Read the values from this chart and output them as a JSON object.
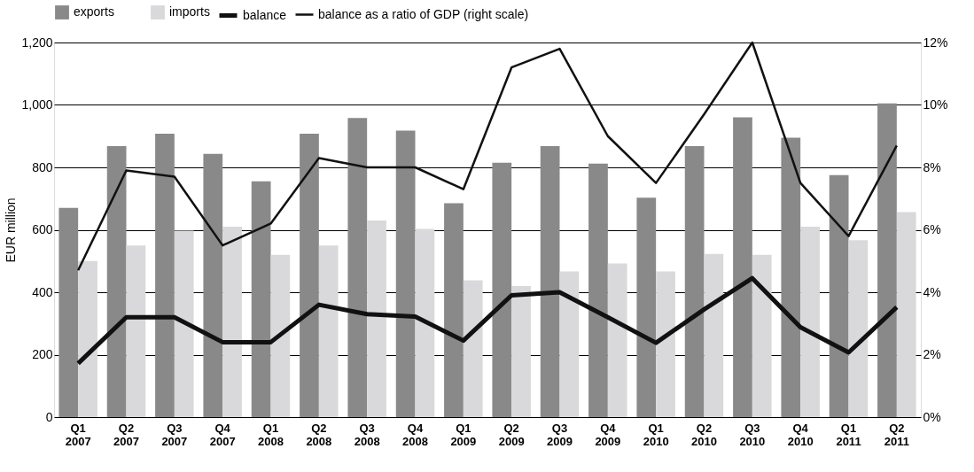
{
  "chart_data": {
    "type": "bar",
    "ylabel": "EUR million",
    "categories": [
      "Q1 2007",
      "Q2 2007",
      "Q3 2007",
      "Q4 2007",
      "Q1 2008",
      "Q2 2008",
      "Q3 2008",
      "Q4 2008",
      "Q1 2009",
      "Q2 2009",
      "Q3 2009",
      "Q4 2009",
      "Q1 2010",
      "Q2 2010",
      "Q3 2010",
      "Q4 2010",
      "Q1 2011",
      "Q2 2011"
    ],
    "series": [
      {
        "name": "exports",
        "color": "#898989",
        "values": [
          670,
          868,
          908,
          843,
          755,
          908,
          958,
          918,
          685,
          815,
          868,
          812,
          703,
          868,
          960,
          895,
          775,
          1005
        ]
      },
      {
        "name": "imports",
        "color": "#d9d9db",
        "values": [
          500,
          550,
          597,
          610,
          520,
          550,
          630,
          603,
          438,
          420,
          467,
          492,
          467,
          523,
          520,
          610,
          567,
          657
        ]
      },
      {
        "name": "balance",
        "type": "line",
        "color": "#111111",
        "values": [
          172,
          320,
          320,
          240,
          240,
          360,
          330,
          322,
          245,
          390,
          400,
          320,
          238,
          345,
          445,
          288,
          207,
          352
        ]
      },
      {
        "name": "balance as a ratio of GDP (right scale)",
        "type": "line",
        "axis": "y2",
        "color": "#111111",
        "values": [
          4.7,
          7.9,
          7.7,
          5.5,
          6.2,
          8.3,
          8.0,
          8.0,
          7.3,
          11.2,
          11.8,
          9.0,
          7.5,
          9.7,
          12.0,
          7.5,
          5.8,
          8.7
        ]
      }
    ],
    "ylim": [
      0,
      1200
    ],
    "yticks": [
      {
        "value": 0,
        "label": "0"
      },
      {
        "value": 200,
        "label": "200"
      },
      {
        "value": 400,
        "label": "400"
      },
      {
        "value": 600,
        "label": "600"
      },
      {
        "value": 800,
        "label": "800"
      },
      {
        "value": 1000,
        "label": "1,000"
      },
      {
        "value": 1200,
        "label": "1,200"
      }
    ],
    "y2lim": [
      0,
      12
    ],
    "y2ticks": [
      {
        "value": 0,
        "label": "0%"
      },
      {
        "value": 2,
        "label": "2%"
      },
      {
        "value": 4,
        "label": "4%"
      },
      {
        "value": 6,
        "label": "6%"
      },
      {
        "value": 8,
        "label": "8%"
      },
      {
        "value": 10,
        "label": "10%"
      },
      {
        "value": 12,
        "label": "12%"
      }
    ],
    "grid": "y",
    "legend": "top",
    "marker": "none",
    "line_style": "solid"
  }
}
